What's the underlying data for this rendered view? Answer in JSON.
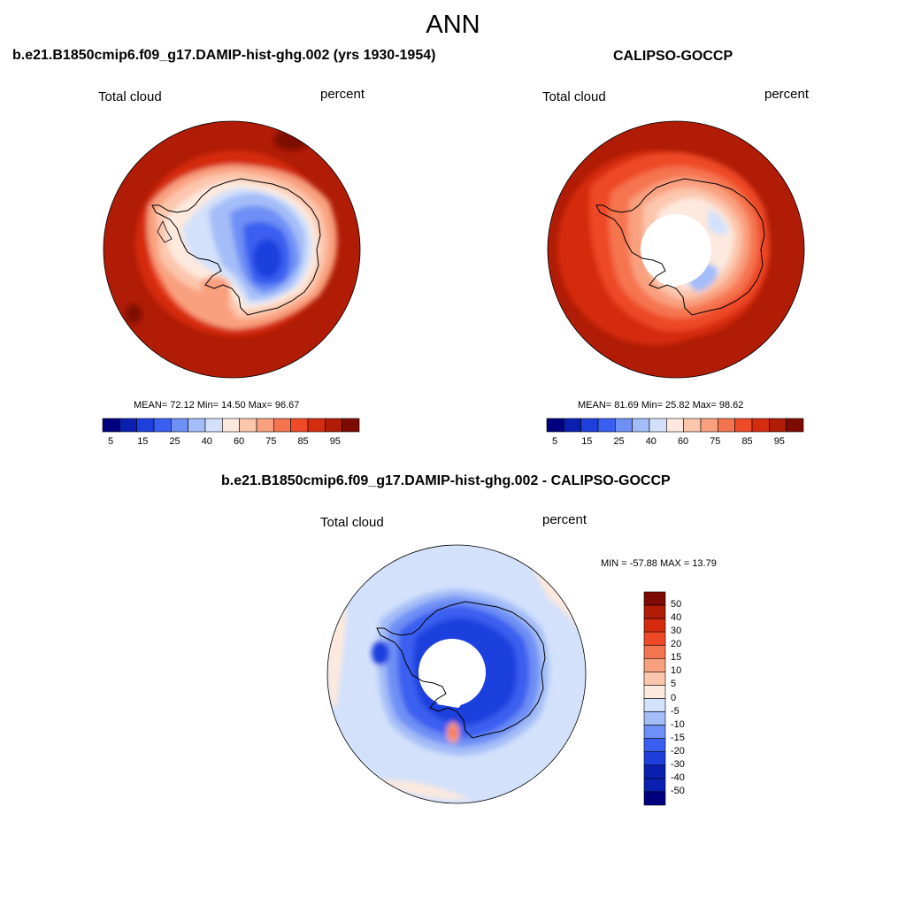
{
  "title": "ANN",
  "panels": [
    {
      "title": "b.e21.B1850cmip6.f09_g17.DAMIP-hist-ghg.002 (yrs 1930-1954)",
      "variable": "Total cloud",
      "units": "percent",
      "stats": "MEAN=  72.12  Min=  14.50  Max=  96.67",
      "mean": 72.12,
      "min": 14.5,
      "max": 96.67
    },
    {
      "title": "CALIPSO-GOCCP",
      "variable": "Total cloud",
      "units": "percent",
      "stats": "MEAN=  81.69  Min=  25.82  Max=  98.62",
      "mean": 81.69,
      "min": 25.82,
      "max": 98.62
    },
    {
      "title": "b.e21.B1850cmip6.f09_g17.DAMIP-hist-ghg.002 - CALIPSO-GOCCP",
      "variable": "Total cloud",
      "units": "percent",
      "stats": "MIN = -57.88 MAX =  13.79",
      "min": -57.88,
      "max": 13.79
    }
  ],
  "colorbar_abs": {
    "labels": [
      "5",
      "15",
      "25",
      "40",
      "60",
      "75",
      "85",
      "95"
    ],
    "colors": [
      "#00007f",
      "#0a1fb0",
      "#1f3fdd",
      "#3a5ef0",
      "#6e8ff5",
      "#a4bdf8",
      "#d3e1fb",
      "#fde9dd",
      "#fcc6ad",
      "#f9a07f",
      "#f57450",
      "#ee4a28",
      "#d52c10",
      "#b01c06",
      "#7e0b02"
    ]
  },
  "colorbar_diff": {
    "labels": [
      "50",
      "40",
      "30",
      "20",
      "15",
      "10",
      "5",
      "0",
      "-5",
      "-10",
      "-15",
      "-20",
      "-30",
      "-40",
      "-50"
    ],
    "colors": [
      "#7e0b02",
      "#b01c06",
      "#d52c10",
      "#ee4a28",
      "#f57450",
      "#f9a07f",
      "#fcc6ad",
      "#fde9dd",
      "#d3e1fb",
      "#a4bdf8",
      "#6e8ff5",
      "#3a5ef0",
      "#1f3fdd",
      "#0a1fb0",
      "#0a1fb0",
      "#00007f"
    ]
  }
}
